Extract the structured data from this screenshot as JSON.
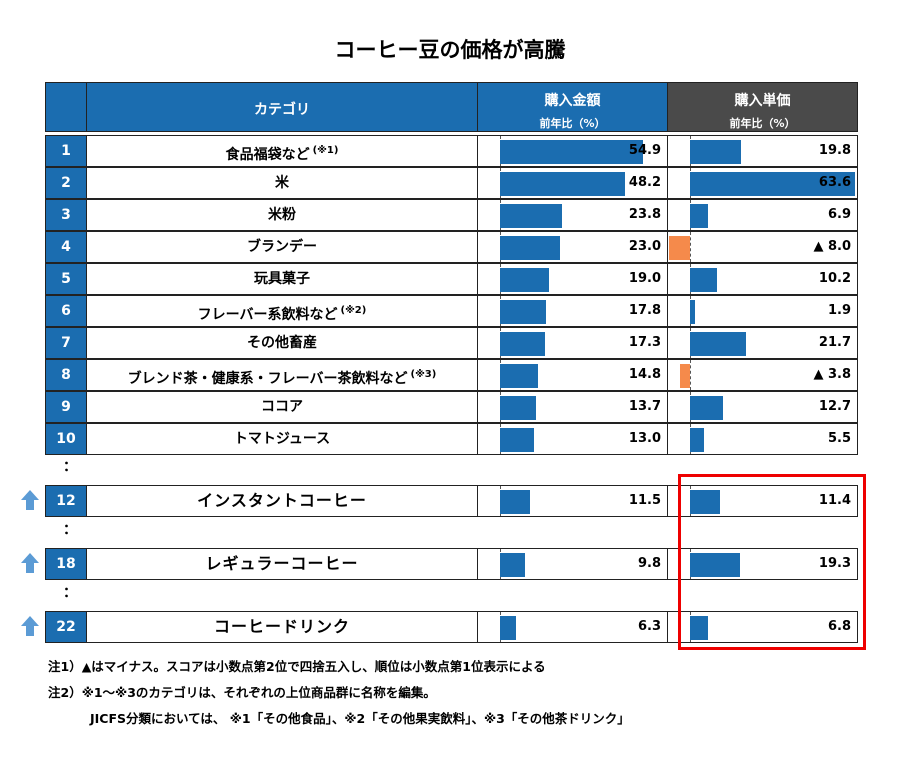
{
  "title": "コーヒー豆の価格が高騰",
  "headers": {
    "category": "カテゴリ",
    "amount": "購入金額",
    "amount_sub": "前年比（%）",
    "unit_price": "購入単価",
    "unit_price_sub": "前年比（%）"
  },
  "colors": {
    "accent": "#1b6db0",
    "header_dark": "#4a4a4a",
    "negative": "#f58a4b",
    "highlight": "#e00000"
  },
  "chart_data": {
    "type": "bar",
    "categories": [
      "食品福袋など",
      "米",
      "米粉",
      "ブランデー",
      "玩具菓子",
      "フレーバー系飲料など",
      "その他畜産",
      "ブレンド茶・健康系・フレーバー茶飲料など",
      "ココア",
      "トマトジュース",
      "インスタントコーヒー",
      "レギュラーコーヒー",
      "コーヒードリンク"
    ],
    "series": [
      {
        "name": "購入金額",
        "values": [
          54.9,
          48.2,
          23.8,
          23.0,
          19.0,
          17.8,
          17.3,
          14.8,
          13.7,
          13.0,
          11.5,
          9.8,
          6.3
        ]
      },
      {
        "name": "購入単価",
        "values": [
          19.8,
          63.6,
          6.9,
          -8.0,
          10.2,
          1.9,
          21.7,
          -3.8,
          12.7,
          5.5,
          11.4,
          19.3,
          6.8
        ]
      }
    ]
  },
  "rows": [
    {
      "rank": "1",
      "category": "食品福袋など",
      "note": "(※1)",
      "amount": "54.9",
      "unit": "19.8"
    },
    {
      "rank": "2",
      "category": "米",
      "note": "",
      "amount": "48.2",
      "unit": "63.6"
    },
    {
      "rank": "3",
      "category": "米粉",
      "note": "",
      "amount": "23.8",
      "unit": "6.9"
    },
    {
      "rank": "4",
      "category": "ブランデー",
      "note": "",
      "amount": "23.0",
      "unit": "▲ 8.0"
    },
    {
      "rank": "5",
      "category": "玩具菓子",
      "note": "",
      "amount": "19.0",
      "unit": "10.2"
    },
    {
      "rank": "6",
      "category": "フレーバー系飲料など",
      "note": "(※2)",
      "amount": "17.8",
      "unit": "1.9"
    },
    {
      "rank": "7",
      "category": "その他畜産",
      "note": "",
      "amount": "17.3",
      "unit": "21.7"
    },
    {
      "rank": "8",
      "category": "ブレンド茶・健康系・フレーバー茶飲料など",
      "note": "(※3)",
      "amount": "14.8",
      "unit": "▲ 3.8"
    },
    {
      "rank": "9",
      "category": "ココア",
      "note": "",
      "amount": "13.7",
      "unit": "12.7"
    },
    {
      "rank": "10",
      "category": "トマトジュース",
      "note": "",
      "amount": "13.0",
      "unit": "5.5"
    },
    {
      "rank": "12",
      "category": "インスタントコーヒー",
      "note": "",
      "amount": "11.5",
      "unit": "11.4"
    },
    {
      "rank": "18",
      "category": "レギュラーコーヒー",
      "note": "",
      "amount": "9.8",
      "unit": "19.3"
    },
    {
      "rank": "22",
      "category": "コーヒードリンク",
      "note": "",
      "amount": "6.3",
      "unit": "6.8"
    }
  ],
  "ellipsis": "：",
  "notes": [
    "注1）▲はマイナス。スコアは小数点第2位で四捨五入し、順位は小数点第1位表示による",
    "注2）※1～※3のカテゴリは、それぞれの上位商品群に名称を編集。",
    "JICFS分類においては、 ※1「その他食品」、※2「その他果実飲料」、※3「その他茶ドリンク」"
  ]
}
